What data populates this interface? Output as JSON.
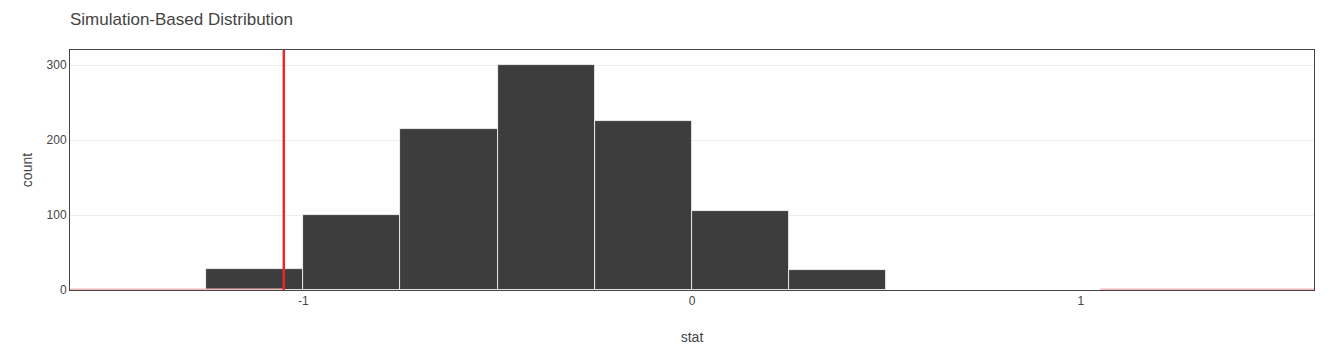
{
  "chart_data": {
    "type": "histogram",
    "title": "Simulation-Based Distribution",
    "xlabel": "stat",
    "ylabel": "count",
    "bins": [
      -1.25,
      -1.0,
      -0.75,
      -0.5,
      -0.25,
      0.0,
      0.25,
      0.5
    ],
    "values": [
      28,
      100,
      215,
      300,
      225,
      105,
      27
    ],
    "color": "#3d3d3d",
    "xlim": [
      -1.6,
      1.6
    ],
    "xticks": [
      -1,
      0,
      1
    ],
    "ylim": [
      0,
      320
    ],
    "yticks": [
      0,
      100,
      200,
      300
    ],
    "grid": "y",
    "vline": {
      "x": -1.05,
      "color": "#e8282b"
    },
    "regions": [
      {
        "x0": -1.6,
        "x1": -1.05,
        "color": "#f5b8b8"
      },
      {
        "x0": 1.05,
        "x1": 1.6,
        "color": "#f5b8b8"
      }
    ]
  }
}
